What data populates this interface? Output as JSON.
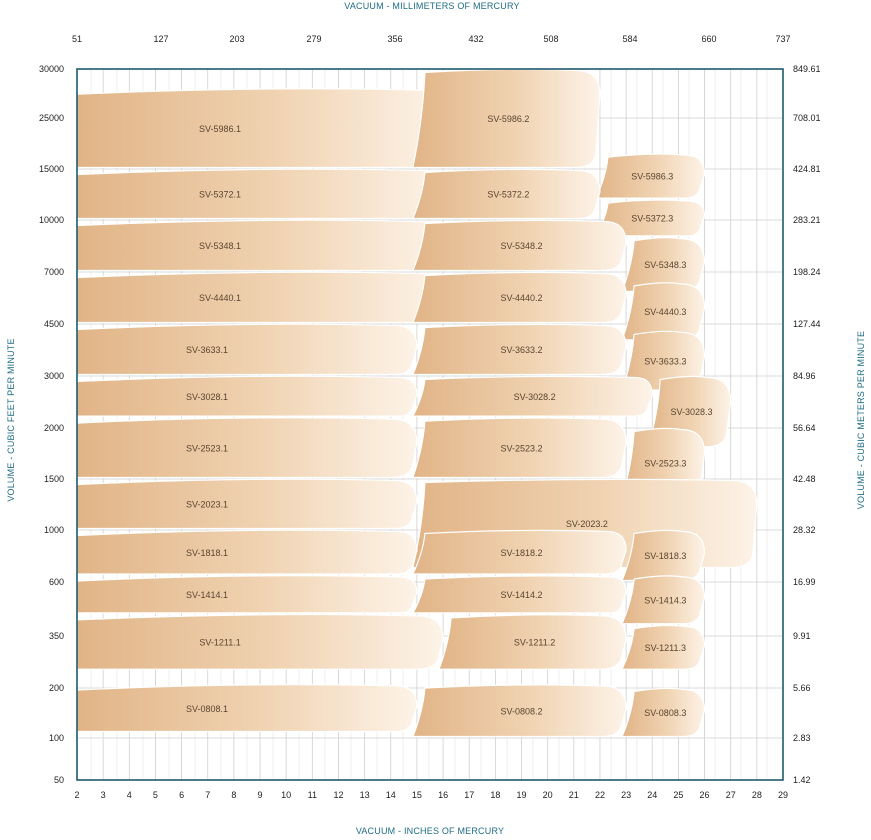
{
  "chart_data": {
    "type": "area",
    "title": "",
    "xlabel_bottom": "VACUUM  -  INCHES OF MERCURY",
    "xlabel_top": "VACUUM  -  MILLIMETERS OF MERCURY",
    "ylabel_left": "VOLUME  -  CUBIC FEET PER MINUTE",
    "ylabel_right": "VOLUME  -  CUBIC METERS PER MINUTE",
    "x_ticks_bottom": [
      "2",
      "3",
      "4",
      "5",
      "6",
      "7",
      "8",
      "9",
      "10",
      "11",
      "12",
      "13",
      "14",
      "15",
      "16",
      "17",
      "18",
      "19",
      "20",
      "21",
      "22",
      "23",
      "24",
      "25",
      "26",
      "27",
      "28",
      "29"
    ],
    "x_ticks_top": [
      "51",
      "127",
      "203",
      "279",
      "356",
      "432",
      "508",
      "584",
      "660",
      "737"
    ],
    "y_ticks_left": [
      "30000",
      "25000",
      "15000",
      "10000",
      "7000",
      "4500",
      "3000",
      "2000",
      "1500",
      "1000",
      "600",
      "350",
      "200",
      "100",
      "50"
    ],
    "y_ticks_right": [
      "849.61",
      "708.01",
      "424.81",
      "283.21",
      "198.24",
      "127.44",
      "84.96",
      "56.64",
      "42.48",
      "28.32",
      "16.99",
      "9.91",
      "5.66",
      "2.83",
      "1.42"
    ],
    "xlim": [
      2,
      29
    ],
    "grid": true,
    "colors": {
      "band": "#e3b98c",
      "band_light": "#fbeee0",
      "frame": "#1e5a6e",
      "grid": "#cfcfcf",
      "axis_title": "#1e6c86"
    },
    "series": [
      {
        "name": "SV-5986.1",
        "x_range": [
          2,
          16
        ],
        "cfm_range": [
          15000,
          28000
        ]
      },
      {
        "name": "SV-5986.2",
        "x_range": [
          15,
          22
        ],
        "cfm_range": [
          15000,
          30000
        ]
      },
      {
        "name": "SV-5986.3",
        "x_range": [
          22,
          26
        ],
        "cfm_range": [
          12000,
          18000
        ]
      },
      {
        "name": "SV-5372.1",
        "x_range": [
          2,
          16
        ],
        "cfm_range": [
          10000,
          15000
        ]
      },
      {
        "name": "SV-5372.2",
        "x_range": [
          15,
          22
        ],
        "cfm_range": [
          10000,
          15000
        ]
      },
      {
        "name": "SV-5372.3",
        "x_range": [
          22,
          26
        ],
        "cfm_range": [
          9000,
          12000
        ]
      },
      {
        "name": "SV-5348.1",
        "x_range": [
          2,
          16
        ],
        "cfm_range": [
          7000,
          10000
        ]
      },
      {
        "name": "SV-5348.2",
        "x_range": [
          15,
          23
        ],
        "cfm_range": [
          7000,
          10000
        ]
      },
      {
        "name": "SV-5348.3",
        "x_range": [
          23,
          26
        ],
        "cfm_range": [
          6000,
          9000
        ]
      },
      {
        "name": "SV-4440.1",
        "x_range": [
          2,
          16
        ],
        "cfm_range": [
          4500,
          7000
        ]
      },
      {
        "name": "SV-4440.2",
        "x_range": [
          15,
          23
        ],
        "cfm_range": [
          4500,
          7000
        ]
      },
      {
        "name": "SV-4440.3",
        "x_range": [
          23,
          26
        ],
        "cfm_range": [
          4000,
          6500
        ]
      },
      {
        "name": "SV-3633.1",
        "x_range": [
          2,
          15
        ],
        "cfm_range": [
          3000,
          4500
        ]
      },
      {
        "name": "SV-3633.2",
        "x_range": [
          15,
          23
        ],
        "cfm_range": [
          3000,
          4500
        ]
      },
      {
        "name": "SV-3633.3",
        "x_range": [
          23,
          26
        ],
        "cfm_range": [
          2700,
          4300
        ]
      },
      {
        "name": "SV-3028.1",
        "x_range": [
          2,
          15
        ],
        "cfm_range": [
          2200,
          3000
        ]
      },
      {
        "name": "SV-3028.2",
        "x_range": [
          15,
          24
        ],
        "cfm_range": [
          2200,
          3000
        ]
      },
      {
        "name": "SV-3028.3",
        "x_range": [
          24,
          27
        ],
        "cfm_range": [
          1800,
          3000
        ]
      },
      {
        "name": "SV-2523.1",
        "x_range": [
          2,
          15
        ],
        "cfm_range": [
          1500,
          2200
        ]
      },
      {
        "name": "SV-2523.2",
        "x_range": [
          15,
          23
        ],
        "cfm_range": [
          1500,
          2200
        ]
      },
      {
        "name": "SV-2523.3",
        "x_range": [
          23,
          26
        ],
        "cfm_range": [
          1300,
          2000
        ]
      },
      {
        "name": "SV-2023.1",
        "x_range": [
          2,
          15
        ],
        "cfm_range": [
          1000,
          1500
        ]
      },
      {
        "name": "SV-2023.2",
        "x_range": [
          15,
          28
        ],
        "cfm_range": [
          700,
          1500
        ]
      },
      {
        "name": "SV-1818.1",
        "x_range": [
          2,
          15
        ],
        "cfm_range": [
          650,
          1000
        ]
      },
      {
        "name": "SV-1818.2",
        "x_range": [
          15,
          23
        ],
        "cfm_range": [
          650,
          1000
        ]
      },
      {
        "name": "SV-1818.3",
        "x_range": [
          23,
          26
        ],
        "cfm_range": [
          600,
          1000
        ]
      },
      {
        "name": "SV-1414.1",
        "x_range": [
          2,
          15
        ],
        "cfm_range": [
          450,
          650
        ]
      },
      {
        "name": "SV-1414.2",
        "x_range": [
          15,
          23
        ],
        "cfm_range": [
          450,
          650
        ]
      },
      {
        "name": "SV-1414.3",
        "x_range": [
          23,
          26
        ],
        "cfm_range": [
          400,
          650
        ]
      },
      {
        "name": "SV-1211.1",
        "x_range": [
          2,
          16
        ],
        "cfm_range": [
          250,
          450
        ]
      },
      {
        "name": "SV-1211.2",
        "x_range": [
          16,
          23
        ],
        "cfm_range": [
          250,
          450
        ]
      },
      {
        "name": "SV-1211.3",
        "x_range": [
          23,
          26
        ],
        "cfm_range": [
          250,
          400
        ]
      },
      {
        "name": "SV-0808.1",
        "x_range": [
          2,
          15
        ],
        "cfm_range": [
          110,
          210
        ]
      },
      {
        "name": "SV-0808.2",
        "x_range": [
          15,
          23
        ],
        "cfm_range": [
          100,
          210
        ]
      },
      {
        "name": "SV-0808.3",
        "x_range": [
          23,
          26
        ],
        "cfm_range": [
          100,
          200
        ]
      }
    ]
  }
}
